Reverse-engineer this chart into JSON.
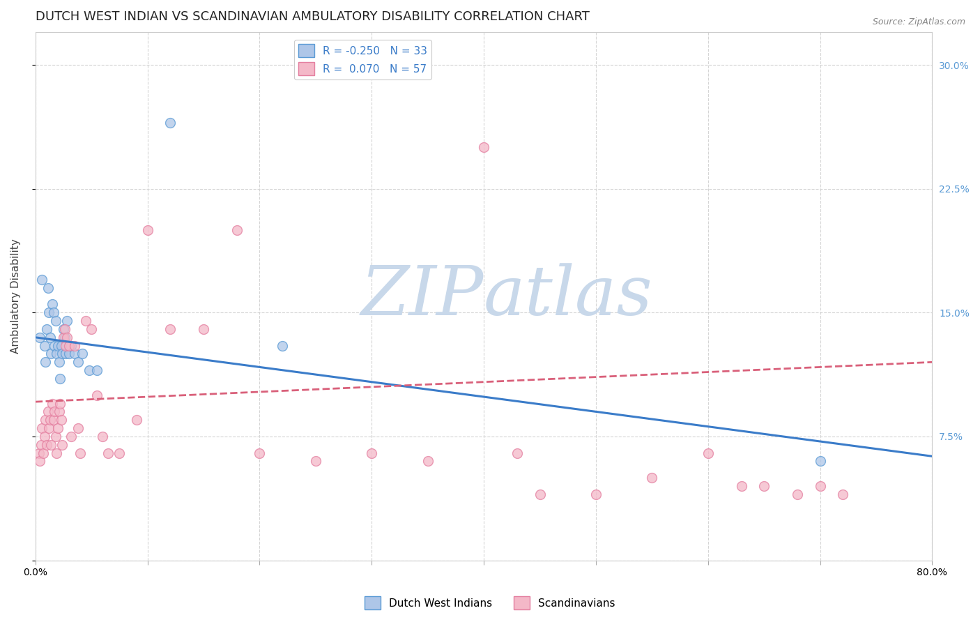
{
  "title": "DUTCH WEST INDIAN VS SCANDINAVIAN AMBULATORY DISABILITY CORRELATION CHART",
  "source": "Source: ZipAtlas.com",
  "ylabel": "Ambulatory Disability",
  "xlabel": "",
  "xlim": [
    0.0,
    0.8
  ],
  "ylim": [
    0.0,
    0.32
  ],
  "yticks": [
    0.0,
    0.075,
    0.15,
    0.225,
    0.3
  ],
  "ytick_labels": [
    "",
    "7.5%",
    "15.0%",
    "22.5%",
    "30.0%"
  ],
  "xticks": [
    0.0,
    0.1,
    0.2,
    0.3,
    0.4,
    0.5,
    0.6,
    0.7,
    0.8
  ],
  "xtick_labels": [
    "0.0%",
    "",
    "",
    "",
    "",
    "",
    "",
    "",
    "80.0%"
  ],
  "watermark_zip": "ZIP",
  "watermark_atlas": "atlas",
  "legend_label_blue": "R = -0.250   N = 33",
  "legend_label_pink": "R =  0.070   N = 57",
  "dutch_west_indian_x": [
    0.004,
    0.006,
    0.008,
    0.009,
    0.01,
    0.011,
    0.012,
    0.013,
    0.014,
    0.015,
    0.016,
    0.017,
    0.018,
    0.019,
    0.02,
    0.021,
    0.022,
    0.023,
    0.024,
    0.025,
    0.026,
    0.027,
    0.028,
    0.03,
    0.032,
    0.035,
    0.038,
    0.042,
    0.048,
    0.055,
    0.12,
    0.22,
    0.7
  ],
  "dutch_west_indian_y": [
    0.135,
    0.17,
    0.13,
    0.12,
    0.14,
    0.165,
    0.15,
    0.135,
    0.125,
    0.155,
    0.15,
    0.13,
    0.145,
    0.125,
    0.13,
    0.12,
    0.11,
    0.13,
    0.125,
    0.14,
    0.135,
    0.125,
    0.145,
    0.125,
    0.13,
    0.125,
    0.12,
    0.125,
    0.115,
    0.115,
    0.265,
    0.13,
    0.06
  ],
  "scandinavian_x": [
    0.003,
    0.004,
    0.005,
    0.006,
    0.007,
    0.008,
    0.009,
    0.01,
    0.011,
    0.012,
    0.013,
    0.014,
    0.015,
    0.016,
    0.017,
    0.018,
    0.019,
    0.02,
    0.021,
    0.022,
    0.023,
    0.024,
    0.025,
    0.026,
    0.027,
    0.028,
    0.03,
    0.032,
    0.035,
    0.038,
    0.04,
    0.045,
    0.05,
    0.055,
    0.06,
    0.065,
    0.075,
    0.09,
    0.1,
    0.12,
    0.15,
    0.18,
    0.2,
    0.25,
    0.3,
    0.35,
    0.4,
    0.43,
    0.45,
    0.5,
    0.55,
    0.6,
    0.63,
    0.65,
    0.68,
    0.7,
    0.72
  ],
  "scandinavian_y": [
    0.065,
    0.06,
    0.07,
    0.08,
    0.065,
    0.075,
    0.085,
    0.07,
    0.09,
    0.08,
    0.085,
    0.07,
    0.095,
    0.085,
    0.09,
    0.075,
    0.065,
    0.08,
    0.09,
    0.095,
    0.085,
    0.07,
    0.135,
    0.14,
    0.13,
    0.135,
    0.13,
    0.075,
    0.13,
    0.08,
    0.065,
    0.145,
    0.14,
    0.1,
    0.075,
    0.065,
    0.065,
    0.085,
    0.2,
    0.14,
    0.14,
    0.2,
    0.065,
    0.06,
    0.065,
    0.06,
    0.25,
    0.065,
    0.04,
    0.04,
    0.05,
    0.065,
    0.045,
    0.045,
    0.04,
    0.045,
    0.04
  ],
  "dutch_color": "#5b9bd5",
  "dutch_fill": "#aec6e8",
  "scandinavian_color": "#e47fa0",
  "scandinavian_fill": "#f4b8c8",
  "marker_size": 100,
  "marker_alpha": 0.75,
  "trend_dutch_color": "#3b7cc9",
  "trend_scandinavian_color": "#d9607a",
  "background_color": "#ffffff",
  "grid_color": "#d5d5d5",
  "title_fontsize": 13,
  "axis_label_fontsize": 11,
  "tick_fontsize": 10,
  "tick_color_right": "#5b9bd5",
  "watermark_color_zip": "#c8d8ea",
  "watermark_color_atlas": "#c8d8ea",
  "watermark_fontsize": 72
}
